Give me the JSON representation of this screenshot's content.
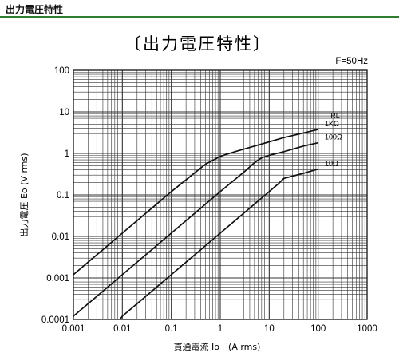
{
  "header": {
    "title": "出力電圧特性"
  },
  "chart_data": {
    "type": "line",
    "title": "〔出力電圧特性〕",
    "annotation": "F=50Hz",
    "xlabel": "貫通電流 Io　(A rms)",
    "ylabel": "出力電圧 Eo (V rms)",
    "x_scale": "log",
    "y_scale": "log",
    "xlim": [
      0.001,
      1000
    ],
    "ylim": [
      0.0001,
      100
    ],
    "x_ticks": [
      "0.001",
      "0.01",
      "0.1",
      "1",
      "10",
      "100",
      "1000"
    ],
    "y_ticks": [
      "0.0001",
      "0.001",
      "0.01",
      "0.1",
      "1",
      "10",
      "100"
    ],
    "grid": true,
    "legend_title": "RL",
    "colors": {
      "line": "#111111",
      "grid": "#333333",
      "header_rule": "#2f7d2f"
    },
    "series": [
      {
        "name": "1KΩ",
        "x": [
          0.001,
          0.01,
          0.1,
          0.5,
          1,
          2,
          5,
          10,
          20,
          50,
          100
        ],
        "y": [
          0.0012,
          0.012,
          0.12,
          0.55,
          0.85,
          1.1,
          1.5,
          1.9,
          2.4,
          3.1,
          3.8
        ]
      },
      {
        "name": "100Ω",
        "x": [
          0.001,
          0.01,
          0.1,
          1,
          3,
          5,
          7,
          10,
          20,
          50,
          100
        ],
        "y": [
          0.00012,
          0.0012,
          0.012,
          0.12,
          0.35,
          0.6,
          0.78,
          0.9,
          1.1,
          1.5,
          1.8
        ]
      },
      {
        "name": "10Ω",
        "x": [
          0.009,
          0.01,
          0.1,
          1,
          10,
          15,
          20,
          50,
          100
        ],
        "y": [
          0.0001,
          0.00012,
          0.0012,
          0.012,
          0.12,
          0.18,
          0.25,
          0.33,
          0.42
        ]
      }
    ]
  }
}
